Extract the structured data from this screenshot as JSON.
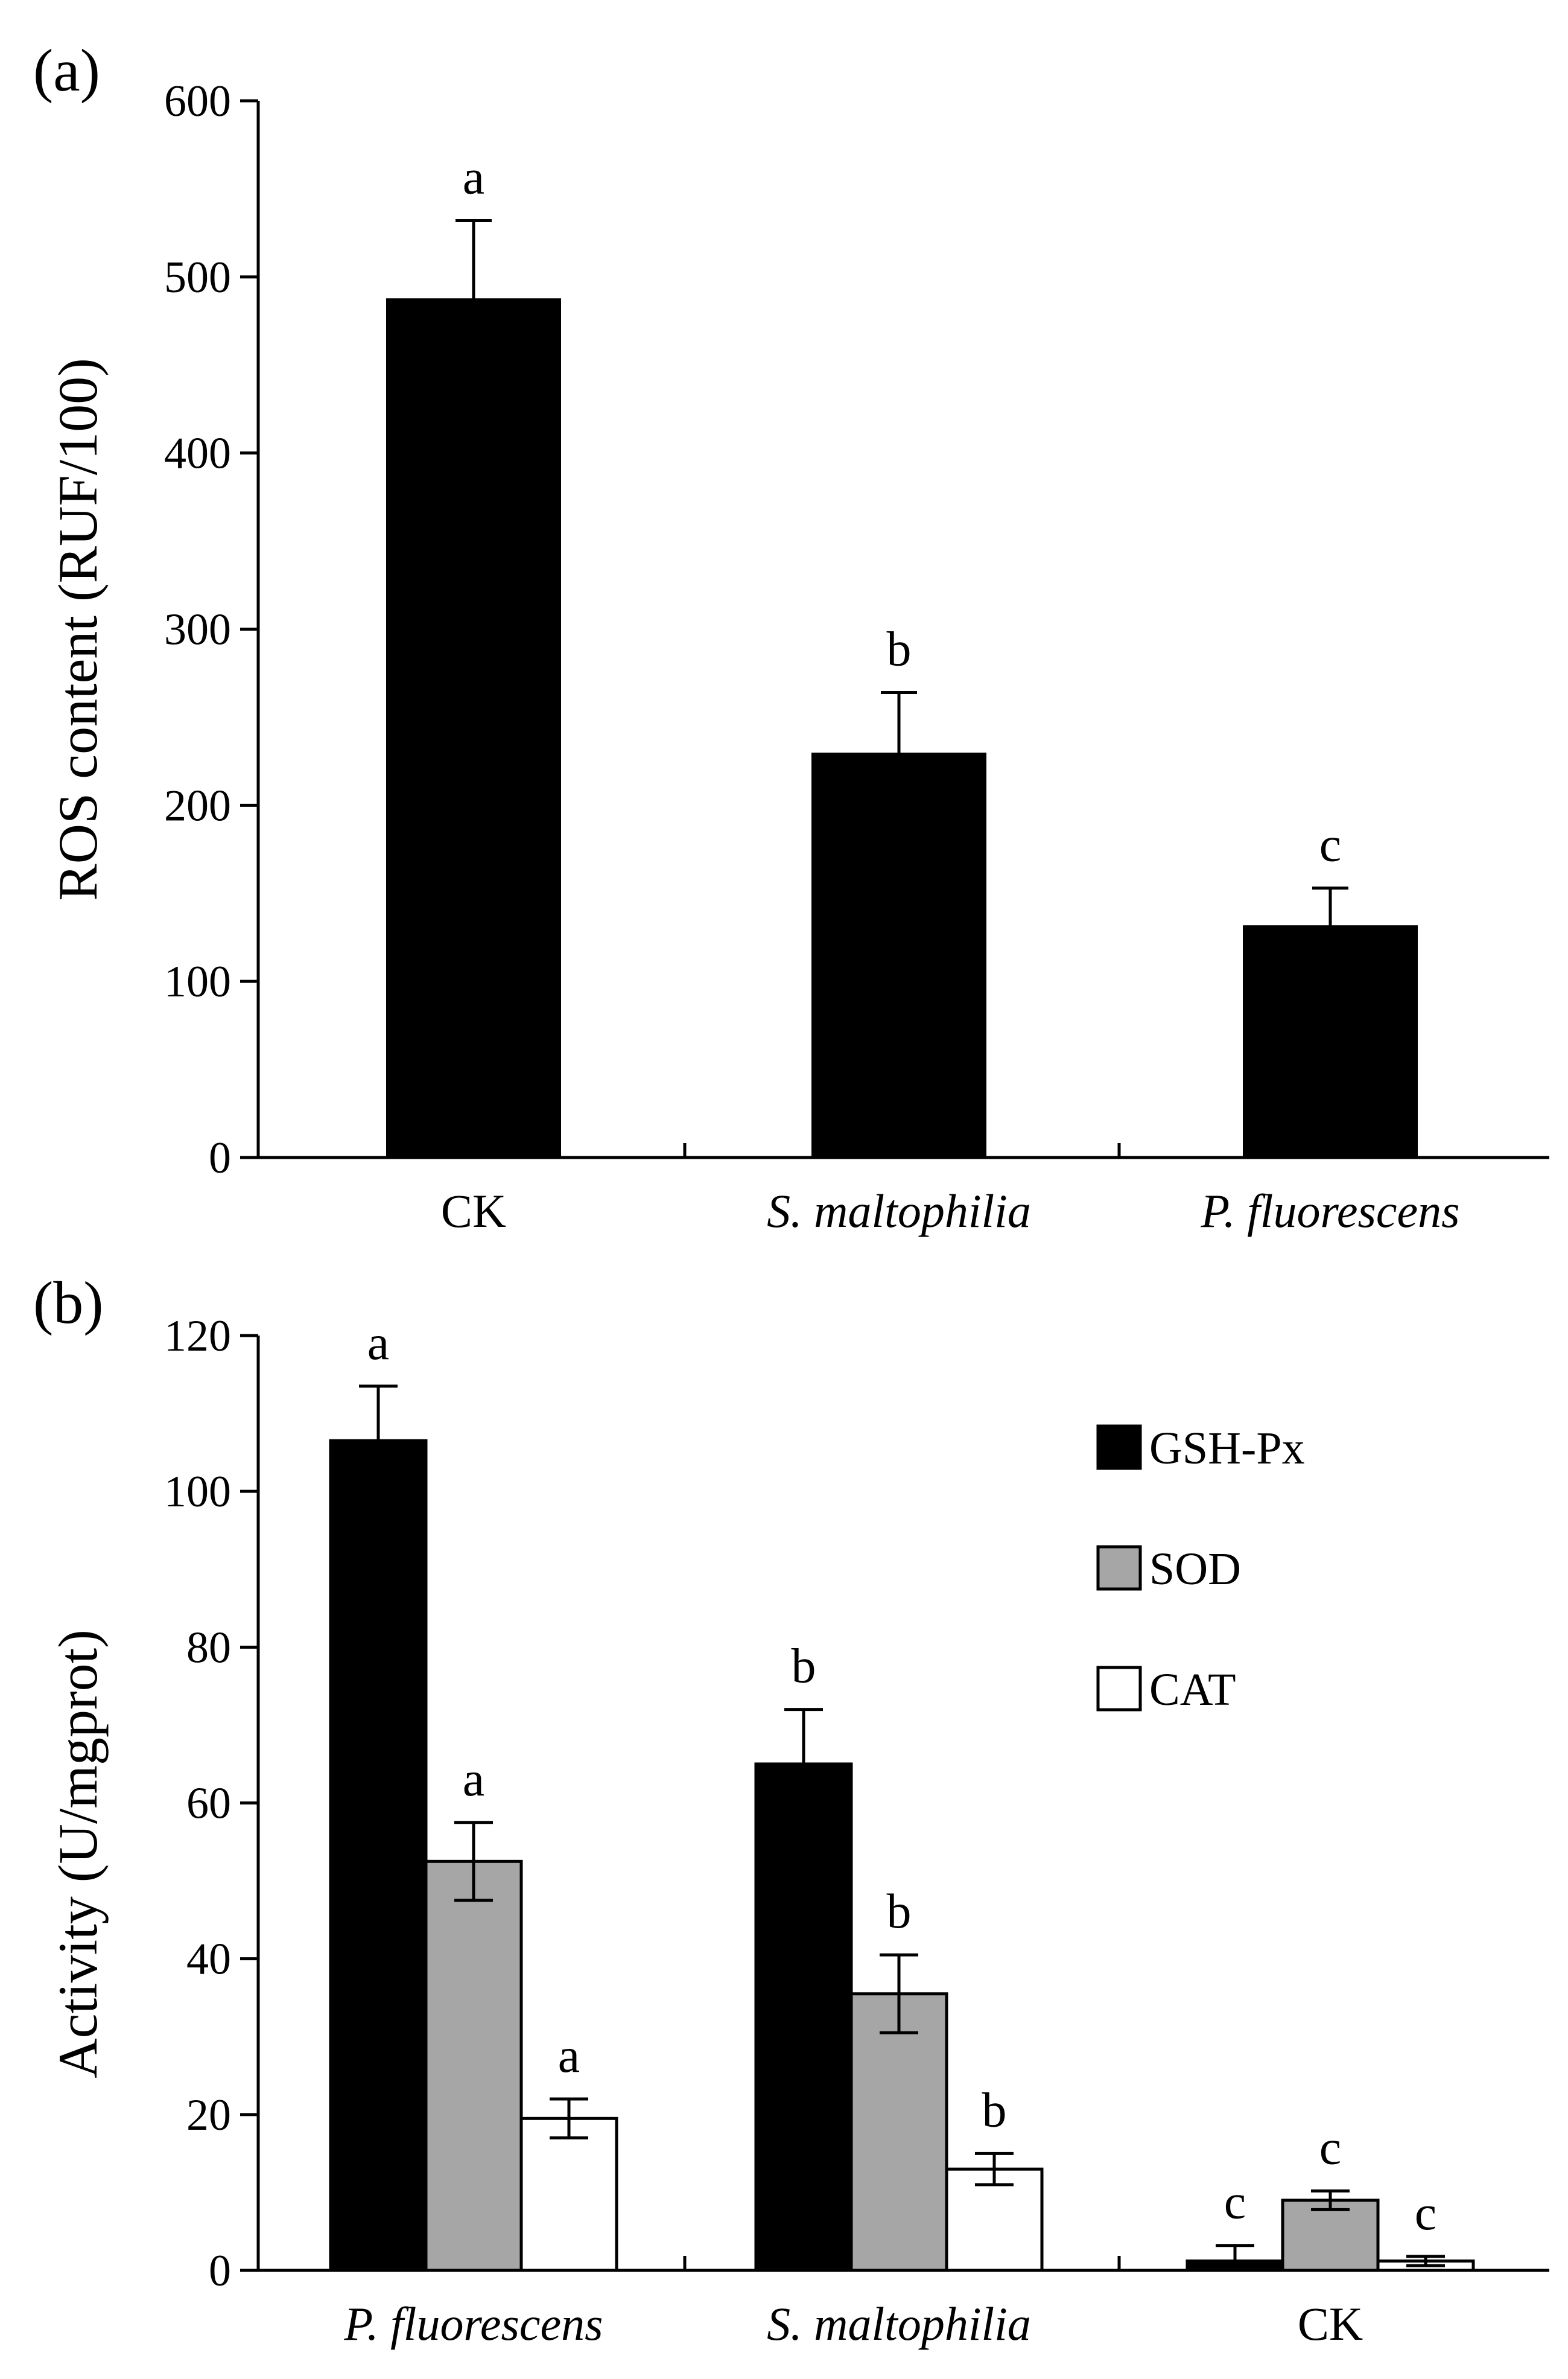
{
  "chart_data": [
    {
      "panel": "(a)",
      "type": "bar",
      "ylabel": "ROS content (RUF/100)",
      "xlabel": "",
      "ylim": [
        0,
        600
      ],
      "yticks": [
        0,
        100,
        200,
        300,
        400,
        500,
        600
      ],
      "categories": [
        "CK",
        "S. maltophilia",
        "P. fluorescens"
      ],
      "italic_categories": [
        false,
        true,
        true
      ],
      "series": [
        {
          "values": [
            487,
            229,
            131
          ],
          "errors": [
            45,
            35,
            22
          ],
          "letters": [
            "a",
            "b",
            "c"
          ],
          "color": "#000000"
        }
      ],
      "legend": "none"
    },
    {
      "panel": "(b)",
      "type": "bar",
      "ylabel": "Activity (U/mgprot)",
      "xlabel": "",
      "ylim": [
        0,
        120
      ],
      "yticks": [
        0,
        20,
        40,
        60,
        80,
        100,
        120
      ],
      "categories": [
        "P. fluorescens",
        "S. maltophilia",
        "CK"
      ],
      "italic_categories": [
        true,
        true,
        false
      ],
      "series": [
        {
          "name": "GSH-Px",
          "color": "#000000",
          "values": [
            106.5,
            65,
            1.2
          ],
          "errors": [
            7,
            7,
            2
          ],
          "letters": [
            "a",
            "b",
            "c"
          ]
        },
        {
          "name": "SOD",
          "color": "#a6a6a6",
          "values": [
            52.5,
            35.5,
            9
          ],
          "errors": [
            5,
            5,
            1.2
          ],
          "letters": [
            "a",
            "b",
            "c"
          ]
        },
        {
          "name": "CAT",
          "color": "#ffffff",
          "values": [
            19.5,
            13,
            1.2
          ],
          "errors": [
            2.5,
            2,
            0.6
          ],
          "letters": [
            "a",
            "b",
            "c"
          ]
        }
      ],
      "legend": "upper right"
    }
  ]
}
